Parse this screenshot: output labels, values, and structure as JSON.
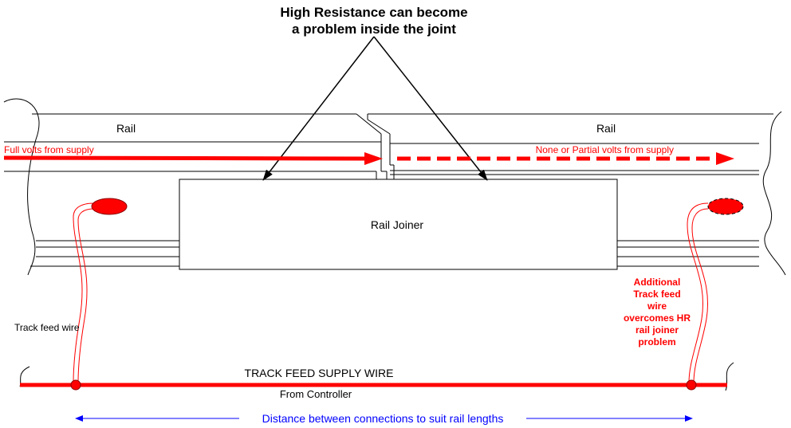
{
  "title": {
    "line1": "High Resistance can become",
    "line2": "a problem inside the joint"
  },
  "rail_left": {
    "label": "Rail",
    "flow_label": "Full volts from supply"
  },
  "rail_right": {
    "label": "Rail",
    "flow_label": "None or Partial volts from supply"
  },
  "joiner": {
    "label": "Rail Joiner"
  },
  "track_feed": {
    "label": "Track feed wire"
  },
  "annotation": {
    "lines": [
      "Additional",
      "Track feed",
      "wire",
      "overcomes HR",
      "rail joiner",
      "problem"
    ]
  },
  "supply": {
    "label": "TRACK FEED SUPPLY WIRE",
    "sublabel": "From Controller"
  },
  "distance": {
    "label": "Distance between connections to suit rail lengths"
  },
  "colors": {
    "feed": "#ff0000",
    "line": "#000000",
    "distance": "#0000ff"
  }
}
